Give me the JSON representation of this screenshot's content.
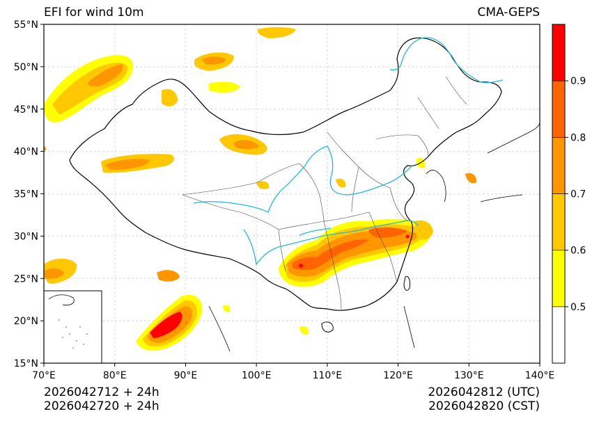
{
  "title": "EFI for wind 10m",
  "source": "CMA-GEPS",
  "init_utc": "2026042712 + 24h",
  "init_cst": "2026042720 + 24h",
  "valid_utc": "2026042812 (UTC)",
  "valid_cst": "2026042820 (CST)",
  "lon_range": [
    70,
    140
  ],
  "lat_range": [
    15,
    55
  ],
  "lon_ticks": [
    "70°E",
    "80°E",
    "90°E",
    "100°E",
    "110°E",
    "120°E",
    "130°E",
    "140°E"
  ],
  "lat_ticks": [
    "15°N",
    "20°N",
    "25°N",
    "30°N",
    "35°N",
    "40°N",
    "45°N",
    "50°N",
    "55°N"
  ],
  "colorbar": {
    "levels": [
      "0.5",
      "0.6",
      "0.7",
      "0.8",
      "0.9"
    ],
    "colors": [
      "#ffffff",
      "#ffff00",
      "#ffc800",
      "#ff9600",
      "#ff6400",
      "#ff0000"
    ]
  }
}
